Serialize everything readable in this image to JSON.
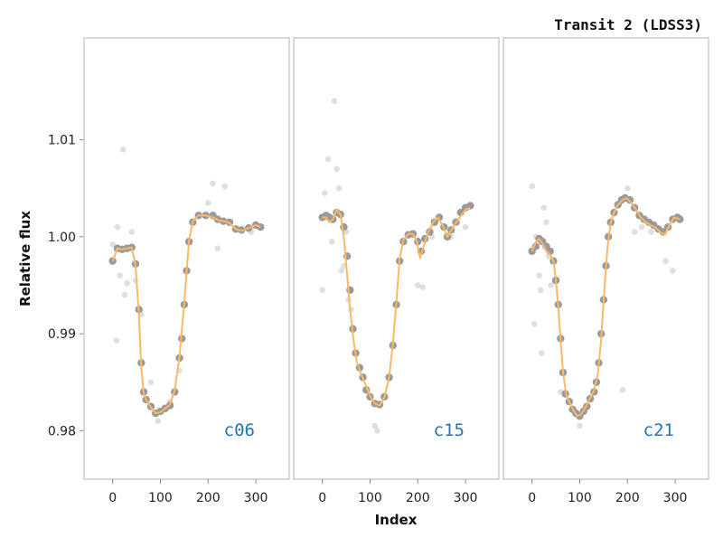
{
  "chart_data": {
    "type": "scatter",
    "title": "Transit 2 (LDSS3)",
    "xlabel": "Index",
    "ylabel": "Relative flux",
    "ylim": [
      0.975,
      1.0205
    ],
    "xlim": [
      -60,
      370
    ],
    "x_ticks": [
      0,
      100,
      200,
      300
    ],
    "y_ticks": [
      0.98,
      0.99,
      1.0,
      1.01
    ],
    "y_tick_labels": [
      "0.98",
      "0.99",
      "1.00",
      "1.01"
    ],
    "grid": false,
    "colors": {
      "raw_points": "#d9d9d9",
      "binned_points": "#9a9a9a",
      "model_line": "#fdb863",
      "panel_label": "#1f77b4",
      "frame": "#cccccc"
    },
    "panels": [
      {
        "label": "c06",
        "raw": [
          [
            0,
            0.9992
          ],
          [
            8,
            0.9893
          ],
          [
            15,
            0.996
          ],
          [
            22,
            1.009
          ],
          [
            30,
            0.9952
          ],
          [
            40,
            1.0005
          ],
          [
            48,
            0.9955
          ],
          [
            80,
            0.985
          ],
          [
            120,
            0.983
          ],
          [
            140,
            0.9862
          ],
          [
            200,
            1.0035
          ],
          [
            210,
            1.0055
          ],
          [
            220,
            0.9988
          ],
          [
            235,
            1.0052
          ],
          [
            260,
            1.0008
          ],
          [
            290,
            1.0005
          ],
          [
            10,
            1.001
          ],
          [
            25,
            0.994
          ],
          [
            60,
            0.992
          ],
          [
            95,
            0.981
          ]
        ],
        "binned": [
          [
            0,
            0.9975
          ],
          [
            10,
            0.9988
          ],
          [
            20,
            0.9987
          ],
          [
            30,
            0.9988
          ],
          [
            40,
            0.9989
          ],
          [
            48,
            0.9972
          ],
          [
            55,
            0.9925
          ],
          [
            60,
            0.987
          ],
          [
            65,
            0.984
          ],
          [
            70,
            0.9832
          ],
          [
            80,
            0.9825
          ],
          [
            90,
            0.9818
          ],
          [
            100,
            0.982
          ],
          [
            110,
            0.9823
          ],
          [
            120,
            0.9826
          ],
          [
            130,
            0.984
          ],
          [
            140,
            0.9875
          ],
          [
            145,
            0.9895
          ],
          [
            150,
            0.993
          ],
          [
            155,
            0.9965
          ],
          [
            160,
            0.9995
          ],
          [
            168,
            1.0015
          ],
          [
            180,
            1.0022
          ],
          [
            195,
            1.0022
          ],
          [
            210,
            1.0022
          ],
          [
            220,
            1.0018
          ],
          [
            232,
            1.0016
          ],
          [
            245,
            1.0015
          ],
          [
            258,
            1.0008
          ],
          [
            270,
            1.0007
          ],
          [
            285,
            1.0009
          ],
          [
            300,
            1.0012
          ],
          [
            310,
            1.001
          ]
        ],
        "model": [
          [
            0,
            0.9975
          ],
          [
            10,
            0.9988
          ],
          [
            20,
            0.9987
          ],
          [
            30,
            0.9988
          ],
          [
            40,
            0.9989
          ],
          [
            48,
            0.997
          ],
          [
            55,
            0.992
          ],
          [
            60,
            0.9865
          ],
          [
            65,
            0.9838
          ],
          [
            72,
            0.983
          ],
          [
            80,
            0.9824
          ],
          [
            90,
            0.9818
          ],
          [
            100,
            0.9819
          ],
          [
            110,
            0.9823
          ],
          [
            120,
            0.9827
          ],
          [
            130,
            0.9842
          ],
          [
            140,
            0.9876
          ],
          [
            150,
            0.9932
          ],
          [
            160,
            0.9996
          ],
          [
            168,
            1.0016
          ],
          [
            180,
            1.0022
          ],
          [
            195,
            1.0022
          ],
          [
            210,
            1.002
          ],
          [
            222,
            1.0017
          ],
          [
            235,
            1.0016
          ],
          [
            245,
            1.0014
          ],
          [
            258,
            1.0008
          ],
          [
            270,
            1.0006
          ],
          [
            285,
            1.0009
          ],
          [
            300,
            1.0012
          ],
          [
            310,
            1.001
          ]
        ]
      },
      {
        "label": "c15",
        "raw": [
          [
            0,
            0.9945
          ],
          [
            5,
            1.0045
          ],
          [
            12,
            1.008
          ],
          [
            20,
            0.9995
          ],
          [
            25,
            1.014
          ],
          [
            30,
            1.007
          ],
          [
            40,
            0.9965
          ],
          [
            50,
            1.0005
          ],
          [
            55,
            0.9935
          ],
          [
            60,
            0.9925
          ],
          [
            110,
            0.9805
          ],
          [
            115,
            0.98
          ],
          [
            200,
            0.995
          ],
          [
            210,
            0.9948
          ],
          [
            230,
            1.0
          ],
          [
            270,
            1.0
          ],
          [
            300,
            1.001
          ],
          [
            8,
            1.002
          ],
          [
            35,
            1.005
          ],
          [
            45,
            0.997
          ]
        ],
        "binned": [
          [
            0,
            1.002
          ],
          [
            8,
            1.0022
          ],
          [
            15,
            1.002
          ],
          [
            22,
            1.0018
          ],
          [
            30,
            1.0025
          ],
          [
            38,
            1.0023
          ],
          [
            45,
            1.001
          ],
          [
            52,
            0.998
          ],
          [
            58,
            0.9945
          ],
          [
            64,
            0.9905
          ],
          [
            70,
            0.988
          ],
          [
            78,
            0.9865
          ],
          [
            85,
            0.9855
          ],
          [
            92,
            0.9842
          ],
          [
            100,
            0.9835
          ],
          [
            110,
            0.9828
          ],
          [
            120,
            0.9827
          ],
          [
            130,
            0.9835
          ],
          [
            140,
            0.9855
          ],
          [
            148,
            0.9888
          ],
          [
            155,
            0.993
          ],
          [
            162,
            0.9975
          ],
          [
            170,
            0.9995
          ],
          [
            180,
            1.0002
          ],
          [
            190,
            1.0003
          ],
          [
            200,
            0.9995
          ],
          [
            207,
            0.9985
          ],
          [
            215,
            0.9998
          ],
          [
            225,
            1.0005
          ],
          [
            235,
            1.0015
          ],
          [
            245,
            1.002
          ],
          [
            255,
            1.001
          ],
          [
            262,
            1.0
          ],
          [
            270,
            1.0007
          ],
          [
            280,
            1.0015
          ],
          [
            290,
            1.0025
          ],
          [
            300,
            1.003
          ],
          [
            310,
            1.0032
          ]
        ],
        "model": [
          [
            0,
            1.002
          ],
          [
            8,
            1.002
          ],
          [
            15,
            1.0015
          ],
          [
            22,
            1.0018
          ],
          [
            30,
            1.0028
          ],
          [
            38,
            1.0023
          ],
          [
            45,
            1.0
          ],
          [
            52,
            0.996
          ],
          [
            58,
            0.9925
          ],
          [
            65,
            0.9895
          ],
          [
            72,
            0.9872
          ],
          [
            80,
            0.986
          ],
          [
            90,
            0.9848
          ],
          [
            100,
            0.9836
          ],
          [
            110,
            0.9828
          ],
          [
            120,
            0.9826
          ],
          [
            130,
            0.9834
          ],
          [
            140,
            0.9856
          ],
          [
            148,
            0.989
          ],
          [
            155,
            0.9932
          ],
          [
            162,
            0.9977
          ],
          [
            170,
            0.9997
          ],
          [
            180,
            1.0003
          ],
          [
            190,
            1.0003
          ],
          [
            198,
            0.9995
          ],
          [
            205,
            0.9978
          ],
          [
            212,
            0.999
          ],
          [
            222,
            1.0005
          ],
          [
            232,
            1.0015
          ],
          [
            242,
            1.002
          ],
          [
            252,
            1.0012
          ],
          [
            262,
            1.0
          ],
          [
            272,
            1.0008
          ],
          [
            285,
            1.0018
          ],
          [
            300,
            1.0028
          ],
          [
            310,
            1.003
          ]
        ]
      },
      {
        "label": "c21",
        "raw": [
          [
            0,
            1.0052
          ],
          [
            5,
            0.991
          ],
          [
            10,
            0.999
          ],
          [
            15,
            0.996
          ],
          [
            20,
            0.988
          ],
          [
            25,
            1.003
          ],
          [
            30,
            1.0015
          ],
          [
            35,
            0.998
          ],
          [
            60,
            0.984
          ],
          [
            100,
            0.9805
          ],
          [
            190,
            0.9842
          ],
          [
            200,
            1.005
          ],
          [
            215,
            1.0005
          ],
          [
            230,
            1.001
          ],
          [
            250,
            1.0005
          ],
          [
            280,
            0.9975
          ],
          [
            295,
            0.9965
          ],
          [
            8,
            1.0
          ],
          [
            18,
            0.9945
          ],
          [
            40,
            0.995
          ]
        ],
        "binned": [
          [
            0,
            0.9985
          ],
          [
            8,
            0.999
          ],
          [
            15,
            0.9998
          ],
          [
            22,
            0.9995
          ],
          [
            30,
            0.999
          ],
          [
            38,
            0.9985
          ],
          [
            45,
            0.9975
          ],
          [
            50,
            0.9955
          ],
          [
            55,
            0.993
          ],
          [
            60,
            0.9895
          ],
          [
            65,
            0.986
          ],
          [
            70,
            0.9838
          ],
          [
            78,
            0.983
          ],
          [
            85,
            0.9822
          ],
          [
            92,
            0.9818
          ],
          [
            100,
            0.9815
          ],
          [
            108,
            0.982
          ],
          [
            115,
            0.9825
          ],
          [
            122,
            0.9833
          ],
          [
            130,
            0.984
          ],
          [
            135,
            0.985
          ],
          [
            140,
            0.987
          ],
          [
            145,
            0.99
          ],
          [
            150,
            0.9935
          ],
          [
            155,
            0.997
          ],
          [
            160,
            1.0
          ],
          [
            165,
            1.0015
          ],
          [
            172,
            1.0025
          ],
          [
            180,
            1.0033
          ],
          [
            188,
            1.0038
          ],
          [
            195,
            1.004
          ],
          [
            205,
            1.0038
          ],
          [
            215,
            1.003
          ],
          [
            225,
            1.0022
          ],
          [
            235,
            1.0018
          ],
          [
            245,
            1.0015
          ],
          [
            255,
            1.0012
          ],
          [
            265,
            1.0008
          ],
          [
            275,
            1.0005
          ],
          [
            285,
            1.001
          ],
          [
            295,
            1.0018
          ],
          [
            305,
            1.002
          ],
          [
            310,
            1.0018
          ]
        ],
        "model": [
          [
            0,
            0.9985
          ],
          [
            8,
            0.9995
          ],
          [
            15,
            0.9998
          ],
          [
            22,
            0.9993
          ],
          [
            30,
            0.9985
          ],
          [
            38,
            0.9982
          ],
          [
            45,
            0.9975
          ],
          [
            50,
            0.9955
          ],
          [
            55,
            0.9928
          ],
          [
            60,
            0.9893
          ],
          [
            65,
            0.986
          ],
          [
            72,
            0.9836
          ],
          [
            80,
            0.9828
          ],
          [
            88,
            0.982
          ],
          [
            95,
            0.9815
          ],
          [
            103,
            0.9817
          ],
          [
            112,
            0.9824
          ],
          [
            120,
            0.9832
          ],
          [
            130,
            0.9842
          ],
          [
            138,
            0.9858
          ],
          [
            145,
            0.9895
          ],
          [
            152,
            0.9948
          ],
          [
            158,
            0.9988
          ],
          [
            165,
            1.0015
          ],
          [
            172,
            1.0025
          ],
          [
            180,
            1.0033
          ],
          [
            190,
            1.0038
          ],
          [
            198,
            1.004
          ],
          [
            208,
            1.0035
          ],
          [
            218,
            1.0028
          ],
          [
            228,
            1.002
          ],
          [
            238,
            1.0015
          ],
          [
            248,
            1.0012
          ],
          [
            258,
            1.001
          ],
          [
            268,
            1.0005
          ],
          [
            278,
            1.0002
          ],
          [
            288,
            1.0012
          ],
          [
            298,
            1.002
          ],
          [
            310,
            1.0018
          ]
        ]
      }
    ]
  }
}
